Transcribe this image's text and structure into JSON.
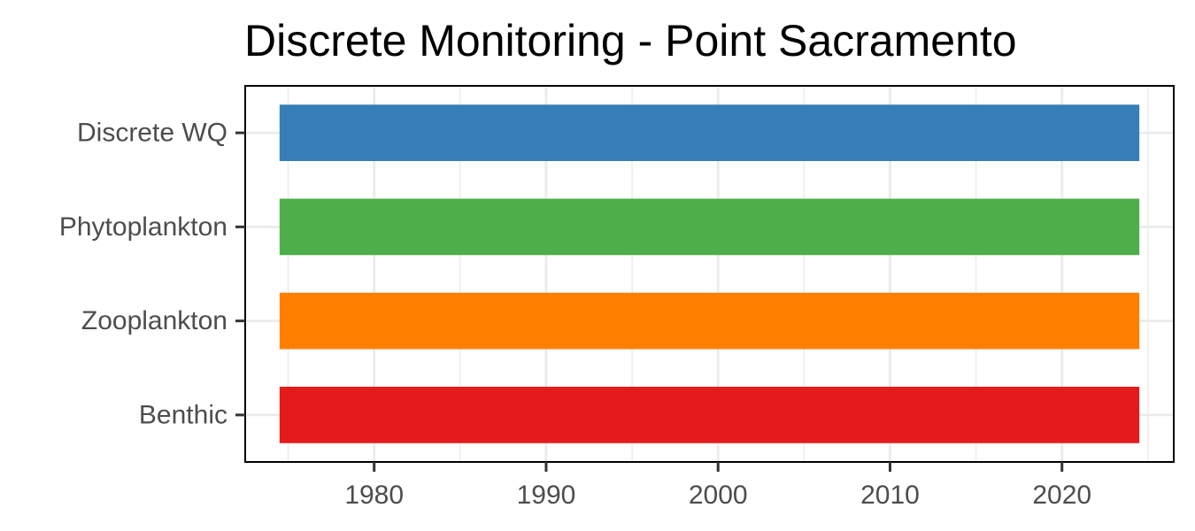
{
  "chart_data": {
    "type": "bar",
    "orientation": "horizontal",
    "title": "Discrete Monitoring - Point Sacramento",
    "xlabel": "",
    "ylabel": "",
    "categories": [
      "Discrete WQ",
      "Phytoplankton",
      "Zooplankton",
      "Benthic"
    ],
    "series": [
      {
        "start": [
          1975,
          1975,
          1975,
          1975
        ],
        "end": [
          2024,
          2024,
          2024,
          2024
        ]
      }
    ],
    "bar_colors": [
      "#377EB8",
      "#4DAF4A",
      "#FF7F00",
      "#E41A1C"
    ],
    "xlim": [
      1972.5,
      2026.5
    ],
    "xticks": [
      1980,
      1990,
      2000,
      2010,
      2020
    ],
    "xtick_labels": [
      "1980",
      "1990",
      "2000",
      "2010",
      "2020"
    ],
    "grid": true,
    "legend": "none"
  }
}
